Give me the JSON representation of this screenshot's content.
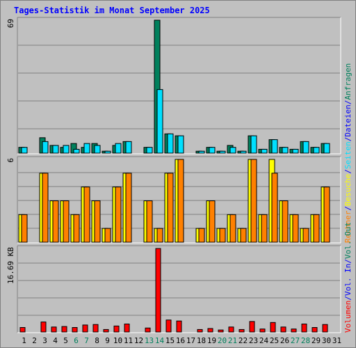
{
  "title": "Tages-Statistik im Monat September 2025",
  "right_legend": {
    "top": [
      {
        "text": "Anfragen",
        "color": "#00805C"
      },
      {
        "text": "/",
        "color": "#0000FF"
      },
      {
        "text": "Dateien",
        "color": "#0000FF"
      },
      {
        "text": "/",
        "color": "#0000FF"
      },
      {
        "text": "Seiten",
        "color": "#00E0FF"
      },
      {
        "text": "/",
        "color": "#0000FF"
      },
      {
        "text": "Besuche",
        "color": "#FFFF00"
      },
      {
        "text": "/",
        "color": "#0000FF"
      },
      {
        "text": "Rechner",
        "color": "#FF8000"
      }
    ],
    "middle": [
      {
        "text": "Vol. Out",
        "color": "#00805C"
      },
      {
        "text": "/",
        "color": "#0000FF"
      },
      {
        "text": "Vol. In",
        "color": "#0000FF"
      },
      {
        "text": "/",
        "color": "#0000FF"
      },
      {
        "text": "Volumen",
        "color": "#FF0000"
      }
    ]
  },
  "colors": {
    "background": "#C0C0C0",
    "plot_bg": "#C0C0C0",
    "grid": "#808080",
    "axis_dark": "#000000",
    "title": "#0000FF",
    "label": "#000000",
    "weekend_label": "#00805C",
    "anfragen": "#00805C",
    "dateien": "#00C0D0",
    "seiten": "#00E0FF",
    "besuche": "#FFFF00",
    "rechner": "#FF8000",
    "volumen": "#FF0000"
  },
  "chart_data": [
    {
      "type": "bar",
      "panel": "hits",
      "ymax_label": "69",
      "ylim": [
        0,
        69
      ],
      "categories": [
        "1",
        "2",
        "3",
        "4",
        "5",
        "6",
        "7",
        "8",
        "9",
        "10",
        "11",
        "12",
        "13",
        "14",
        "15",
        "16",
        "17",
        "18",
        "19",
        "20",
        "21",
        "22",
        "23",
        "24",
        "25",
        "26",
        "27",
        "28",
        "29",
        "30",
        "31"
      ],
      "weekend_days": [
        "6",
        "7",
        "13",
        "14",
        "20",
        "21",
        "27",
        "28"
      ],
      "series": [
        {
          "name": "Anfragen",
          "color": "#00805C",
          "values": [
            3,
            0,
            8,
            4,
            3,
            5,
            3,
            5,
            1,
            4,
            6,
            0,
            3,
            69,
            10,
            9,
            0,
            1,
            3,
            1,
            4,
            1,
            9,
            2,
            7,
            3,
            2,
            6,
            3,
            5,
            0
          ]
        },
        {
          "name": "Seiten",
          "color": "#00E0FF",
          "values": [
            3,
            0,
            6,
            4,
            4,
            2,
            5,
            4,
            1,
            5,
            6,
            0,
            3,
            33,
            10,
            9,
            0,
            1,
            3,
            1,
            3,
            1,
            9,
            2,
            7,
            3,
            2,
            6,
            3,
            5,
            0
          ]
        }
      ]
    },
    {
      "type": "bar",
      "panel": "visits",
      "ymax_label": "6",
      "ylim": [
        0,
        6
      ],
      "categories": [
        "1",
        "2",
        "3",
        "4",
        "5",
        "6",
        "7",
        "8",
        "9",
        "10",
        "11",
        "12",
        "13",
        "14",
        "15",
        "16",
        "17",
        "18",
        "19",
        "20",
        "21",
        "22",
        "23",
        "24",
        "25",
        "26",
        "27",
        "28",
        "29",
        "30",
        "31"
      ],
      "series": [
        {
          "name": "Besuche",
          "color": "#FFFF00",
          "values": [
            2,
            0,
            5,
            3,
            3,
            2,
            4,
            3,
            1,
            4,
            5,
            0,
            3,
            1,
            5,
            6,
            0,
            1,
            3,
            1,
            2,
            1,
            6,
            2,
            6,
            3,
            2,
            1,
            2,
            4,
            0
          ]
        },
        {
          "name": "Rechner",
          "color": "#FF8000",
          "values": [
            2,
            0,
            5,
            3,
            3,
            2,
            4,
            3,
            1,
            4,
            5,
            0,
            3,
            1,
            5,
            6,
            0,
            1,
            3,
            1,
            2,
            1,
            6,
            2,
            5,
            3,
            2,
            1,
            2,
            4,
            0
          ]
        }
      ]
    },
    {
      "type": "bar",
      "panel": "volume",
      "ymax_label": "16.69 KB",
      "ylim": [
        0,
        16.69
      ],
      "unit": "KB",
      "categories": [
        "1",
        "2",
        "3",
        "4",
        "5",
        "6",
        "7",
        "8",
        "9",
        "10",
        "11",
        "12",
        "13",
        "14",
        "15",
        "16",
        "17",
        "18",
        "19",
        "20",
        "21",
        "22",
        "23",
        "24",
        "25",
        "26",
        "27",
        "28",
        "29",
        "30",
        "31"
      ],
      "series": [
        {
          "name": "Volumen",
          "color": "#FF0000",
          "values": [
            0.9,
            0,
            2.0,
            1.0,
            1.1,
            0.9,
            1.4,
            1.5,
            0.5,
            1.2,
            1.6,
            0,
            0.8,
            16.69,
            2.4,
            2.2,
            0,
            0.5,
            0.7,
            0.4,
            1.0,
            0.5,
            2.1,
            0.6,
            1.9,
            1.0,
            0.6,
            1.6,
            0.9,
            1.5,
            0
          ]
        }
      ]
    }
  ]
}
